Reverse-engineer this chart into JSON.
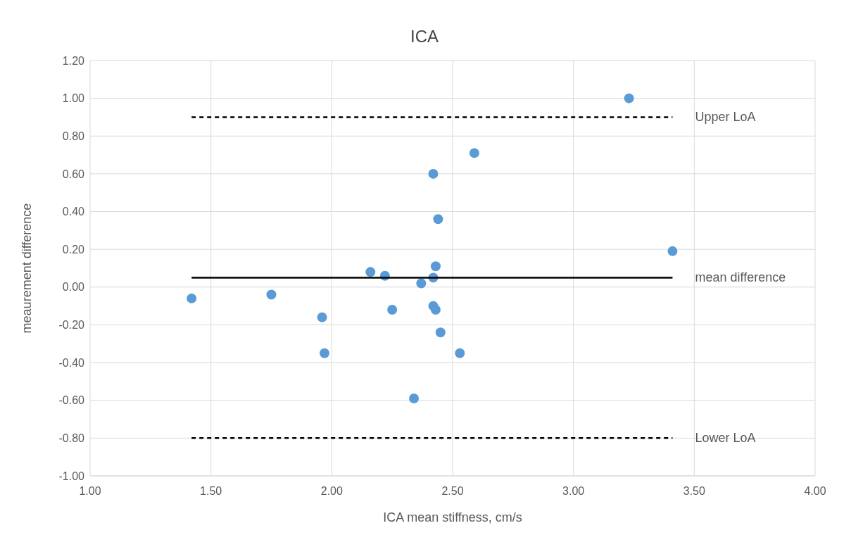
{
  "chart_data": {
    "type": "scatter",
    "title": "ICA",
    "xlabel": "ICA mean stiffness, cm/s",
    "ylabel": "meaurement difference",
    "xlim": [
      1,
      4
    ],
    "xticks": [
      {
        "value": 1,
        "label": "1.00"
      },
      {
        "value": 1.5,
        "label": "1.50"
      },
      {
        "value": 2,
        "label": "2.00"
      },
      {
        "value": 2.5,
        "label": "2.50"
      },
      {
        "value": 3,
        "label": "3.00"
      },
      {
        "value": 3.5,
        "label": "3.50"
      },
      {
        "value": 4,
        "label": "4.00"
      }
    ],
    "ylim": [
      -1,
      1.2
    ],
    "yticks": [
      {
        "value": -1,
        "label": "-1.00"
      },
      {
        "value": -0.8,
        "label": "-0.80"
      },
      {
        "value": -0.6,
        "label": "-0.60"
      },
      {
        "value": -0.4,
        "label": "-0.40"
      },
      {
        "value": -0.2,
        "label": "-0.20"
      },
      {
        "value": 0,
        "label": "0.00"
      },
      {
        "value": 0.2,
        "label": "0.20"
      },
      {
        "value": 0.4,
        "label": "0.40"
      },
      {
        "value": 0.6,
        "label": "0.60"
      },
      {
        "value": 0.8,
        "label": "0.80"
      },
      {
        "value": 1,
        "label": "1.00"
      },
      {
        "value": 1.2,
        "label": "1.20"
      }
    ],
    "grid": true,
    "series": [
      {
        "type": "scatter",
        "color": "#5b9bd5",
        "marker": "circle",
        "x": [
          3.23,
          2.59,
          2.42,
          2.44,
          3.41,
          2.43,
          2.16,
          2.22,
          2.42,
          2.37,
          1.42,
          1.75,
          2.25,
          2.42,
          2.43,
          1.96,
          2.45,
          1.97,
          2.53,
          2.34
        ],
        "values": [
          1.0,
          0.71,
          0.6,
          0.36,
          0.19,
          0.11,
          0.08,
          0.06,
          0.05,
          0.02,
          -0.06,
          -0.04,
          -0.12,
          -0.1,
          -0.12,
          -0.16,
          -0.24,
          -0.35,
          -0.35,
          -0.59
        ]
      },
      {
        "type": "line",
        "name": "Upper LoA",
        "color": "#000000",
        "line_style": "dashed",
        "marker": "none",
        "x": [
          1.42,
          3.41
        ],
        "values": [
          0.9,
          0.9
        ]
      },
      {
        "type": "line",
        "name": "mean difference",
        "color": "#000000",
        "line_style": "solid",
        "marker": "none",
        "x": [
          1.42,
          3.41
        ],
        "values": [
          0.05,
          0.05
        ]
      },
      {
        "type": "line",
        "name": "Lower LoA",
        "color": "#000000",
        "line_style": "dashed",
        "marker": "none",
        "x": [
          1.42,
          3.41
        ],
        "values": [
          -0.8,
          -0.8
        ]
      }
    ]
  }
}
